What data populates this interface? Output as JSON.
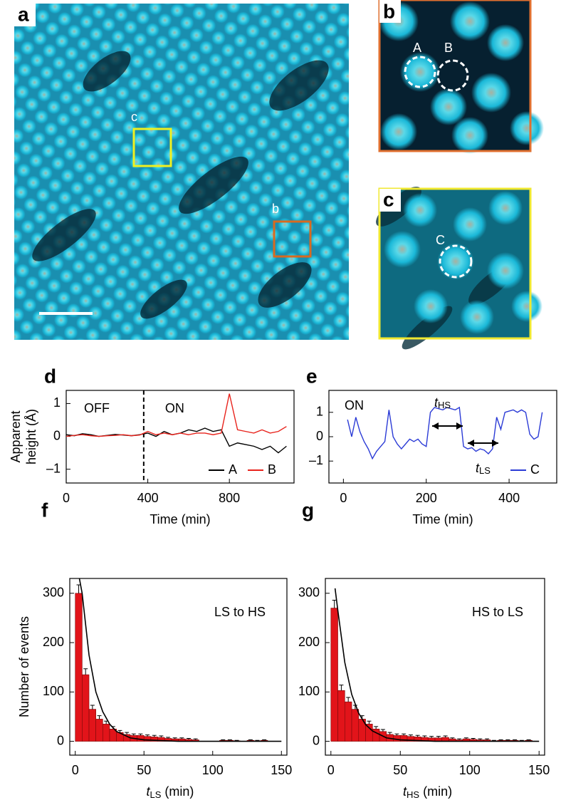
{
  "panels": {
    "a": {
      "label": "a",
      "box_c_label": "c",
      "box_b_label": "b"
    },
    "b": {
      "label": "b",
      "circles": [
        "A",
        "B"
      ]
    },
    "c": {
      "label": "c",
      "circles": [
        "C"
      ]
    }
  },
  "chart_data": [
    {
      "type": "line",
      "panel_label": "d",
      "ylabel": [
        "Apparent",
        "height (Å)"
      ],
      "xlabel": "Time (min)",
      "texts": {
        "off": "OFF",
        "on": "ON"
      },
      "switch_x": 380,
      "xlim": [
        0,
        1117
      ],
      "xticks": [
        0,
        400,
        800
      ],
      "ylim": [
        -1.42,
        1.4
      ],
      "yticks": [
        {
          "value": -1,
          "label": "–1"
        },
        0,
        1
      ],
      "legend": "lower right",
      "x": [
        0,
        40,
        80,
        120,
        160,
        200,
        240,
        280,
        320,
        360,
        400,
        440,
        480,
        520,
        560,
        600,
        640,
        680,
        720,
        760,
        800,
        840,
        880,
        920,
        960,
        1000,
        1040,
        1080
      ],
      "series": [
        {
          "name": "A",
          "color": "#000000",
          "values": [
            0.05,
            0.02,
            0.08,
            0.05,
            0.0,
            0.03,
            0.06,
            0.04,
            0.02,
            0.05,
            0.1,
            0.0,
            0.15,
            0.05,
            0.1,
            0.2,
            0.15,
            0.25,
            0.15,
            0.2,
            -0.3,
            -0.2,
            -0.25,
            -0.3,
            -0.4,
            -0.3,
            -0.5,
            -0.3
          ]
        },
        {
          "name": "B",
          "color": "#e8231c",
          "values": [
            0.0,
            0.03,
            0.05,
            0.02,
            0.0,
            0.02,
            0.03,
            0.05,
            0.02,
            0.04,
            0.15,
            0.05,
            0.1,
            0.05,
            0.1,
            0.05,
            0.1,
            0.1,
            0.05,
            0.1,
            1.3,
            0.2,
            0.15,
            0.1,
            0.2,
            0.1,
            0.15,
            0.3
          ]
        }
      ]
    },
    {
      "type": "line",
      "panel_label": "e",
      "xlabel": "Time (min)",
      "texts": {
        "on": "ON",
        "t_hs": [
          "t",
          "HS"
        ],
        "t_ls": [
          "t",
          "LS"
        ]
      },
      "xlim": [
        -35,
        515
      ],
      "xticks": [
        0,
        200,
        400
      ],
      "ylim": [
        -1.9,
        1.9
      ],
      "yticks": [
        {
          "value": -1,
          "label": "–1"
        },
        0,
        1
      ],
      "legend": "lower right",
      "x": [
        10,
        20,
        30,
        40,
        50,
        60,
        70,
        80,
        90,
        100,
        110,
        120,
        130,
        140,
        150,
        160,
        170,
        180,
        190,
        200,
        210,
        220,
        230,
        240,
        250,
        260,
        270,
        280,
        290,
        300,
        310,
        320,
        330,
        340,
        350,
        360,
        370,
        380,
        390,
        400,
        410,
        420,
        430,
        440,
        450,
        460,
        470,
        480
      ],
      "series": [
        {
          "name": "C",
          "color": "#2b3bd6",
          "values": [
            0.7,
            0.0,
            0.8,
            0.2,
            -0.2,
            -0.5,
            -0.9,
            -0.6,
            -0.4,
            -0.2,
            1.1,
            0.0,
            -0.3,
            -0.5,
            -0.3,
            -0.1,
            -0.2,
            -0.1,
            -0.3,
            -0.4,
            1.0,
            1.2,
            1.15,
            1.1,
            1.2,
            1.15,
            1.1,
            1.2,
            -0.4,
            -0.5,
            -0.45,
            -0.6,
            -0.5,
            -0.55,
            -0.7,
            -0.5,
            0.8,
            0.3,
            1.0,
            1.05,
            1.1,
            1.0,
            1.1,
            1.0,
            0.1,
            -0.1,
            0.0,
            1.0
          ]
        }
      ]
    },
    {
      "type": "histogram",
      "panel_label": "f",
      "ylabel": "Number  of events",
      "xlabel": [
        "t",
        "LS",
        " (min)"
      ],
      "annotation": "LS to HS",
      "color": "#e2141a",
      "xlim": [
        -4,
        154
      ],
      "xticks": [
        0,
        50,
        100,
        150
      ],
      "ylim": [
        -28,
        330
      ],
      "yticks": [
        0,
        100,
        200,
        300
      ],
      "bins": [
        0,
        5,
        10,
        15,
        20,
        25,
        30,
        35,
        40,
        45,
        50,
        55,
        60,
        65,
        70,
        75,
        80,
        85,
        90,
        95,
        100,
        105,
        110,
        115,
        120,
        125,
        130,
        135,
        140,
        145,
        150
      ],
      "values": [
        300,
        135,
        65,
        45,
        35,
        25,
        18,
        14,
        12,
        12,
        10,
        9,
        8,
        6,
        5,
        5,
        4,
        3,
        0,
        0,
        0,
        2,
        2,
        1,
        0,
        2,
        1,
        2,
        0,
        0
      ],
      "errors": [
        17,
        12,
        8,
        7,
        6,
        5,
        4,
        4,
        3,
        3,
        3,
        3,
        3,
        2,
        2,
        2,
        2,
        2,
        0,
        0,
        0,
        1,
        1,
        1,
        0,
        1,
        1,
        1,
        0,
        0
      ],
      "fit": {
        "x": [
          3,
          5,
          10,
          15,
          20,
          25,
          30,
          40,
          50,
          75,
          100,
          150
        ],
        "y": [
          330,
          300,
          175,
          100,
          60,
          35,
          20,
          7,
          3,
          0,
          0,
          0
        ]
      }
    },
    {
      "type": "histogram",
      "panel_label": "g",
      "xlabel": [
        "t",
        "HS",
        " (min)"
      ],
      "annotation": "HS to LS",
      "color": "#e2141a",
      "xlim": [
        -4,
        154
      ],
      "xticks": [
        0,
        50,
        100,
        150
      ],
      "ylim": [
        -28,
        330
      ],
      "yticks": [
        0,
        100,
        200,
        300
      ],
      "bins": [
        0,
        5,
        10,
        15,
        20,
        25,
        30,
        35,
        40,
        45,
        50,
        55,
        60,
        65,
        70,
        75,
        80,
        85,
        90,
        95,
        100,
        105,
        110,
        115,
        120,
        125,
        130,
        135,
        140,
        145,
        150
      ],
      "values": [
        270,
        103,
        80,
        65,
        45,
        35,
        25,
        20,
        14,
        12,
        12,
        10,
        9,
        8,
        7,
        7,
        8,
        5,
        3,
        5,
        4,
        3,
        3,
        1,
        2,
        2,
        2,
        1,
        2,
        0
      ],
      "errors": [
        16,
        11,
        9,
        8,
        7,
        6,
        5,
        4,
        4,
        3,
        3,
        3,
        3,
        3,
        3,
        3,
        3,
        2,
        2,
        2,
        2,
        2,
        2,
        1,
        1,
        1,
        1,
        1,
        1,
        0
      ],
      "fit": {
        "x": [
          3,
          5,
          10,
          15,
          20,
          25,
          30,
          40,
          50,
          75,
          100,
          150
        ],
        "y": [
          310,
          265,
          160,
          95,
          57,
          34,
          21,
          7,
          3,
          0,
          0,
          0
        ]
      }
    }
  ]
}
